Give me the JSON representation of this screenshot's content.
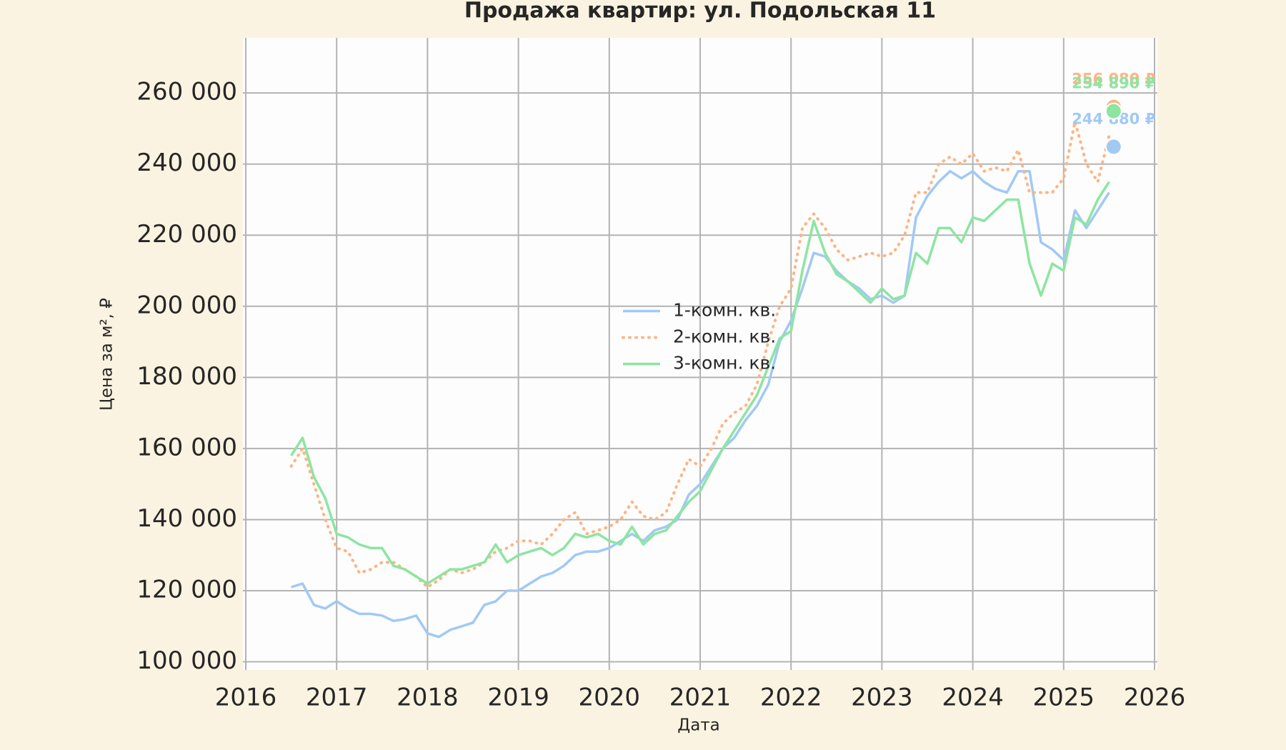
{
  "chart_data": {
    "type": "line",
    "title": "Продажа квартир: ул. Подольская 11",
    "x_label": "Дата",
    "y_label": "Цена за м², ₽",
    "xlim": [
      2016,
      2026
    ],
    "xticks": [
      2016,
      2017,
      2018,
      2019,
      2020,
      2021,
      2022,
      2023,
      2024,
      2025,
      2026
    ],
    "ylim": [
      97700,
      275500
    ],
    "yticks": [
      {
        "value": 100000,
        "label": "100 000"
      },
      {
        "value": 120000,
        "label": "120 000"
      },
      {
        "value": 140000,
        "label": "140 000"
      },
      {
        "value": 160000,
        "label": "160 000"
      },
      {
        "value": 180000,
        "label": "180 000"
      },
      {
        "value": 200000,
        "label": "200 000"
      },
      {
        "value": 220000,
        "label": "220 000"
      },
      {
        "value": 240000,
        "label": "240 000"
      },
      {
        "value": 260000,
        "label": "260 000"
      }
    ],
    "grid": true,
    "legend": "center",
    "x": [
      2016.5,
      2016.625,
      2016.75,
      2016.875,
      2017.0,
      2017.125,
      2017.25,
      2017.375,
      2017.5,
      2017.625,
      2017.75,
      2017.875,
      2018.0,
      2018.125,
      2018.25,
      2018.375,
      2018.5,
      2018.625,
      2018.75,
      2018.875,
      2019.0,
      2019.125,
      2019.25,
      2019.375,
      2019.5,
      2019.625,
      2019.75,
      2019.875,
      2020.0,
      2020.125,
      2020.25,
      2020.375,
      2020.5,
      2020.625,
      2020.75,
      2020.875,
      2021.0,
      2021.125,
      2021.25,
      2021.375,
      2021.5,
      2021.625,
      2021.75,
      2021.875,
      2022.0,
      2022.125,
      2022.25,
      2022.375,
      2022.5,
      2022.625,
      2022.75,
      2022.875,
      2023.0,
      2023.125,
      2023.25,
      2023.375,
      2023.5,
      2023.625,
      2023.75,
      2023.875,
      2024.0,
      2024.125,
      2024.25,
      2024.375,
      2024.5,
      2024.625,
      2024.75,
      2024.875,
      2025.0,
      2025.125,
      2025.25,
      2025.375,
      2025.5
    ],
    "series": [
      {
        "name": "1-комн. кв.",
        "color": "#a1c9f4",
        "style": "solid",
        "values": [
          121000,
          122000,
          116000,
          115000,
          117000,
          115000,
          113500,
          113500,
          113000,
          111500,
          112000,
          113000,
          108000,
          107000,
          109000,
          110000,
          111000,
          116000,
          117000,
          120000,
          120000,
          122000,
          124000,
          125000,
          127000,
          130000,
          131000,
          131000,
          132000,
          134000,
          136000,
          134000,
          137000,
          138000,
          140000,
          147000,
          150000,
          155000,
          160000,
          163000,
          168000,
          172000,
          178000,
          190000,
          196000,
          205000,
          215000,
          214000,
          210000,
          207000,
          205000,
          202000,
          203000,
          201000,
          203000,
          225000,
          231000,
          235000,
          238000,
          236000,
          238000,
          235000,
          233000,
          232000,
          238000,
          238000,
          218000,
          216000,
          213000,
          227000,
          222000,
          227000,
          232000
        ],
        "last": {
          "x": 2025.55,
          "value": 244880,
          "label": "244 880 ₽"
        }
      },
      {
        "name": "2-комн. кв.",
        "color": "#ffb482",
        "style": "dotted",
        "values": [
          155000,
          160000,
          150000,
          140000,
          132000,
          131000,
          125000,
          126000,
          128000,
          128000,
          126000,
          124000,
          121000,
          123000,
          126000,
          125000,
          126000,
          128000,
          131000,
          132000,
          134000,
          134000,
          133000,
          136000,
          140000,
          142000,
          136000,
          137000,
          138000,
          140000,
          145000,
          141000,
          140000,
          142000,
          150000,
          157000,
          155000,
          160000,
          167000,
          170000,
          172000,
          178000,
          190000,
          200000,
          205000,
          222000,
          226000,
          222000,
          216000,
          213000,
          214000,
          215000,
          214000,
          215000,
          220000,
          232000,
          232000,
          240000,
          242000,
          240000,
          243000,
          238000,
          239000,
          238000,
          244000,
          232000,
          232000,
          232000,
          236000,
          252000,
          240000,
          235000,
          248000
        ],
        "last": {
          "x": 2025.55,
          "value": 256080,
          "label": "256 080 ₽"
        }
      },
      {
        "name": "3-комн. кв.",
        "color": "#8de5a1",
        "style": "solid",
        "values": [
          158000,
          163000,
          152000,
          146000,
          136000,
          135000,
          133000,
          132000,
          132000,
          127000,
          126000,
          124000,
          122000,
          124000,
          126000,
          126000,
          127000,
          128000,
          133000,
          128000,
          130000,
          131000,
          132000,
          130000,
          132000,
          136000,
          135000,
          136000,
          134000,
          133000,
          138000,
          133000,
          136000,
          137000,
          141000,
          145000,
          148000,
          154000,
          160000,
          165000,
          170000,
          175000,
          183000,
          191000,
          193000,
          210000,
          224000,
          215000,
          209000,
          207000,
          204000,
          201000,
          205000,
          202000,
          203000,
          215000,
          212000,
          222000,
          222000,
          218000,
          225000,
          224000,
          227000,
          230000,
          230000,
          212000,
          203000,
          212000,
          210000,
          225000,
          223000,
          230000,
          235000
        ],
        "last": {
          "x": 2025.55,
          "value": 254890,
          "label": "254 890 ₽"
        }
      }
    ]
  }
}
